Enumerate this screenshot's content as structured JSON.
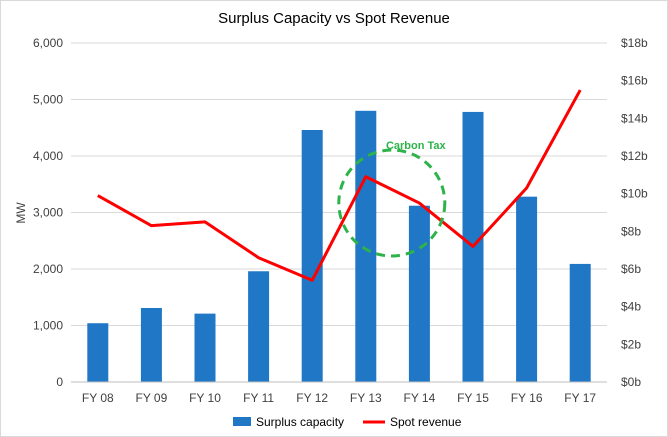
{
  "chart_data": {
    "type": "bar",
    "title": "Surplus Capacity vs Spot Revenue",
    "xlabel": "",
    "ylabel": "MW",
    "y2label": "",
    "categories": [
      "FY 08",
      "FY 09",
      "FY 10",
      "FY 11",
      "FY 12",
      "FY 13",
      "FY 14",
      "FY 15",
      "FY 16",
      "FY 17"
    ],
    "ylim": [
      0,
      6000
    ],
    "y2lim": [
      0,
      18
    ],
    "yticks": [
      "0",
      "1,000",
      "2,000",
      "3,000",
      "4,000",
      "5,000",
      "6,000"
    ],
    "y2ticks": [
      "$0b",
      "$2b",
      "$4b",
      "$6b",
      "$8b",
      "$10b",
      "$12b",
      "$14b",
      "$16b",
      "$18b"
    ],
    "grid": true,
    "legend_position": "bottom",
    "series": [
      {
        "name": "Surplus capacity",
        "type": "bar",
        "axis": "left",
        "color": "#1f77c5",
        "values": [
          1040,
          1310,
          1210,
          1960,
          4460,
          4800,
          3120,
          4780,
          3280,
          2090
        ]
      },
      {
        "name": "Spot revenue",
        "type": "line",
        "axis": "right",
        "color": "#ff0000",
        "values": [
          9.9,
          8.3,
          8.5,
          6.6,
          5.4,
          10.9,
          9.5,
          7.2,
          10.3,
          15.5
        ]
      }
    ],
    "annotations": [
      {
        "text": "Carbon Tax",
        "shape": "dashed-circle",
        "color": "#2db34a",
        "near_category": "FY 13"
      }
    ]
  }
}
